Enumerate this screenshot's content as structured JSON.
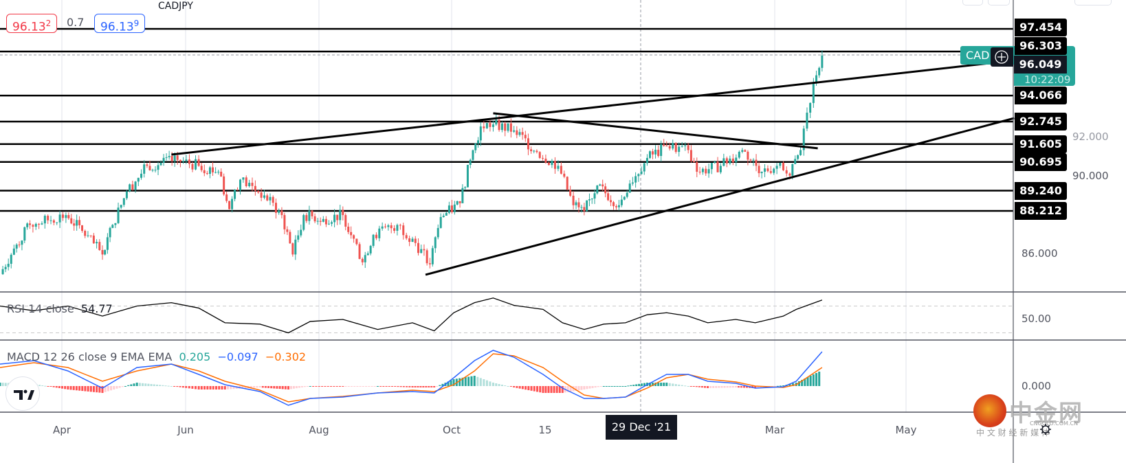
{
  "header": {
    "sell_price_main": "96.13",
    "sell_price_sup": "2",
    "spread": "0.7",
    "buy_price_main": "96.13",
    "buy_price_sup": "9"
  },
  "symbol_badge": {
    "label": "CAD",
    "countdown": "10:22:09"
  },
  "crosshair": {
    "price_label": "96.049",
    "date_label": "29 Dec '21"
  },
  "colors": {
    "up": "#26a69a",
    "down": "#ef5350",
    "macd": "#2962ff",
    "signal": "#ff6d00",
    "hist_up_strong": "#26a69a",
    "hist_up_weak": "#b2dfdb",
    "hist_down_strong": "#ff5252",
    "hist_down_weak": "#ffcdd2",
    "badge": "#26a69a"
  },
  "price_axis": {
    "ticks": [
      "92.000",
      "90.000",
      "86.000"
    ]
  },
  "time_axis": {
    "ticks": [
      "Apr",
      "Jun",
      "Aug",
      "Oct",
      "15",
      "Mar",
      "May"
    ]
  },
  "rsi": {
    "legend": "RSI 14 close",
    "value": "54.77",
    "axis_tick": "50.00"
  },
  "macd": {
    "legend": "MACD 12 26 close 9 EMA EMA",
    "hist_value": "0.205",
    "macd_value": "−0.097",
    "signal_value": "−0.302",
    "axis_tick": "0.000"
  },
  "watermark": {
    "name": "中金网",
    "domain": "CNGOLD.COM.CN",
    "tagline": "中 文 财 经 新 媒 体"
  },
  "chart_data": {
    "type": "candlestick",
    "symbol": "CADJPY",
    "ylim": [
      83.0,
      98.0
    ],
    "horizontal_levels": [
      97.454,
      96.303,
      94.066,
      92.745,
      91.605,
      90.695,
      89.24,
      88.212
    ],
    "current_price": 96.13,
    "trendlines": [
      {
        "from": [
          "2021-05-25",
          91.07
        ],
        "to": [
          "2022-06-20",
          95.85
        ]
      },
      {
        "from": [
          "2021-10-21",
          93.17
        ],
        "to": [
          "2022-03-21",
          91.39
        ]
      },
      {
        "from": [
          "2021-09-19",
          84.97
        ],
        "to": [
          "2022-06-20",
          92.92
        ]
      }
    ],
    "closes": [
      [
        "2021-03-01",
        85.0
      ],
      [
        "2021-03-08",
        86.3
      ],
      [
        "2021-03-16",
        87.5
      ],
      [
        "2021-04-03",
        88.0
      ],
      [
        "2021-04-11",
        87.2
      ],
      [
        "2021-04-21",
        86.0
      ],
      [
        "2021-04-26",
        87.5
      ],
      [
        "2021-05-03",
        89.2
      ],
      [
        "2021-05-13",
        90.5
      ],
      [
        "2021-05-28",
        90.8
      ],
      [
        "2021-06-07",
        90.5
      ],
      [
        "2021-06-16",
        90.2
      ],
      [
        "2021-06-21",
        88.3
      ],
      [
        "2021-06-26",
        89.8
      ],
      [
        "2021-07-07",
        89.0
      ],
      [
        "2021-07-15",
        88.0
      ],
      [
        "2021-07-20",
        86.0
      ],
      [
        "2021-07-25",
        88.0
      ],
      [
        "2021-08-03",
        87.8
      ],
      [
        "2021-08-12",
        88.0
      ],
      [
        "2021-08-17",
        86.8
      ],
      [
        "2021-08-21",
        85.6
      ],
      [
        "2021-08-26",
        87.0
      ],
      [
        "2021-09-06",
        87.5
      ],
      [
        "2021-09-13",
        86.8
      ],
      [
        "2021-09-21",
        85.5
      ],
      [
        "2021-09-26",
        87.9
      ],
      [
        "2021-10-05",
        88.6
      ],
      [
        "2021-10-10",
        90.8
      ],
      [
        "2021-10-15",
        92.5
      ],
      [
        "2021-10-21",
        92.6
      ],
      [
        "2021-10-31",
        92.3
      ],
      [
        "2021-11-11",
        91.2
      ],
      [
        "2021-11-21",
        90.5
      ],
      [
        "2021-11-28",
        88.5
      ],
      [
        "2021-12-03",
        88.2
      ],
      [
        "2021-12-09",
        89.5
      ],
      [
        "2021-12-19",
        88.5
      ],
      [
        "2021-12-24",
        89.6
      ],
      [
        "2022-01-01",
        90.9
      ],
      [
        "2022-01-10",
        91.5
      ],
      [
        "2022-01-20",
        91.3
      ],
      [
        "2022-01-24",
        90.2
      ],
      [
        "2022-02-04",
        90.5
      ],
      [
        "2022-02-14",
        91.3
      ],
      [
        "2022-02-23",
        90.2
      ],
      [
        "2022-03-02",
        90.5
      ],
      [
        "2022-03-08",
        90.0
      ],
      [
        "2022-03-13",
        91.3
      ],
      [
        "2022-03-16",
        93.2
      ],
      [
        "2022-03-19",
        94.7
      ],
      [
        "2022-03-23",
        96.1
      ]
    ],
    "rsi": {
      "levels": [
        70,
        50,
        30
      ],
      "points": [
        [
          "2021-03-01",
          70
        ],
        [
          "2021-03-18",
          63
        ],
        [
          "2021-04-04",
          70
        ],
        [
          "2021-04-21",
          55
        ],
        [
          "2021-05-08",
          70
        ],
        [
          "2021-05-25",
          75
        ],
        [
          "2021-06-07",
          67
        ],
        [
          "2021-06-19",
          45
        ],
        [
          "2021-07-05",
          43
        ],
        [
          "2021-07-18",
          30
        ],
        [
          "2021-07-28",
          47
        ],
        [
          "2021-08-12",
          50
        ],
        [
          "2021-08-28",
          35
        ],
        [
          "2021-09-13",
          45
        ],
        [
          "2021-09-23",
          33
        ],
        [
          "2021-10-02",
          60
        ],
        [
          "2021-10-12",
          75
        ],
        [
          "2021-10-21",
          82
        ],
        [
          "2021-10-31",
          71
        ],
        [
          "2021-11-14",
          65
        ],
        [
          "2021-11-23",
          45
        ],
        [
          "2021-12-03",
          35
        ],
        [
          "2021-12-12",
          43
        ],
        [
          "2021-12-22",
          45
        ],
        [
          "2022-01-01",
          57
        ],
        [
          "2022-01-10",
          60
        ],
        [
          "2022-01-20",
          55
        ],
        [
          "2022-01-29",
          45
        ],
        [
          "2022-02-11",
          50
        ],
        [
          "2022-02-20",
          45
        ],
        [
          "2022-03-05",
          55
        ],
        [
          "2022-03-11",
          65
        ],
        [
          "2022-03-23",
          79
        ]
      ]
    },
    "macd_series": [
      [
        "2021-03-01",
        0.64,
        0.54
      ],
      [
        "2021-03-18",
        0.74,
        0.68
      ],
      [
        "2021-04-04",
        0.44,
        0.54
      ],
      [
        "2021-04-21",
        -0.06,
        0.14
      ],
      [
        "2021-05-08",
        0.54,
        0.44
      ],
      [
        "2021-05-25",
        0.64,
        0.64
      ],
      [
        "2021-06-07",
        0.34,
        0.44
      ],
      [
        "2021-06-19",
        0.04,
        0.14
      ],
      [
        "2021-07-05",
        -0.16,
        -0.12
      ],
      [
        "2021-07-18",
        -0.56,
        -0.46
      ],
      [
        "2021-07-28",
        -0.36,
        -0.36
      ],
      [
        "2021-08-12",
        -0.32,
        -0.3
      ],
      [
        "2021-08-28",
        -0.2,
        -0.2
      ],
      [
        "2021-09-13",
        -0.16,
        -0.12
      ],
      [
        "2021-09-23",
        -0.2,
        -0.16
      ],
      [
        "2021-10-02",
        0.24,
        0.04
      ],
      [
        "2021-10-12",
        0.74,
        0.44
      ],
      [
        "2021-10-21",
        1.04,
        0.94
      ],
      [
        "2021-10-31",
        0.84,
        0.88
      ],
      [
        "2021-11-14",
        0.34,
        0.54
      ],
      [
        "2021-11-23",
        -0.06,
        0.14
      ],
      [
        "2021-12-03",
        -0.36,
        -0.26
      ],
      [
        "2021-12-12",
        -0.36,
        -0.36
      ],
      [
        "2021-12-22",
        -0.32,
        -0.32
      ],
      [
        "2022-01-01",
        0.04,
        -0.06
      ],
      [
        "2022-01-10",
        0.34,
        0.24
      ],
      [
        "2022-01-20",
        0.34,
        0.34
      ],
      [
        "2022-01-29",
        0.14,
        0.2
      ],
      [
        "2022-02-11",
        0.08,
        0.12
      ],
      [
        "2022-02-20",
        -0.06,
        0.0
      ],
      [
        "2022-03-05",
        -0.02,
        -0.04
      ],
      [
        "2022-03-11",
        0.14,
        0.04
      ],
      [
        "2022-03-23",
        1.0,
        0.54
      ]
    ]
  }
}
